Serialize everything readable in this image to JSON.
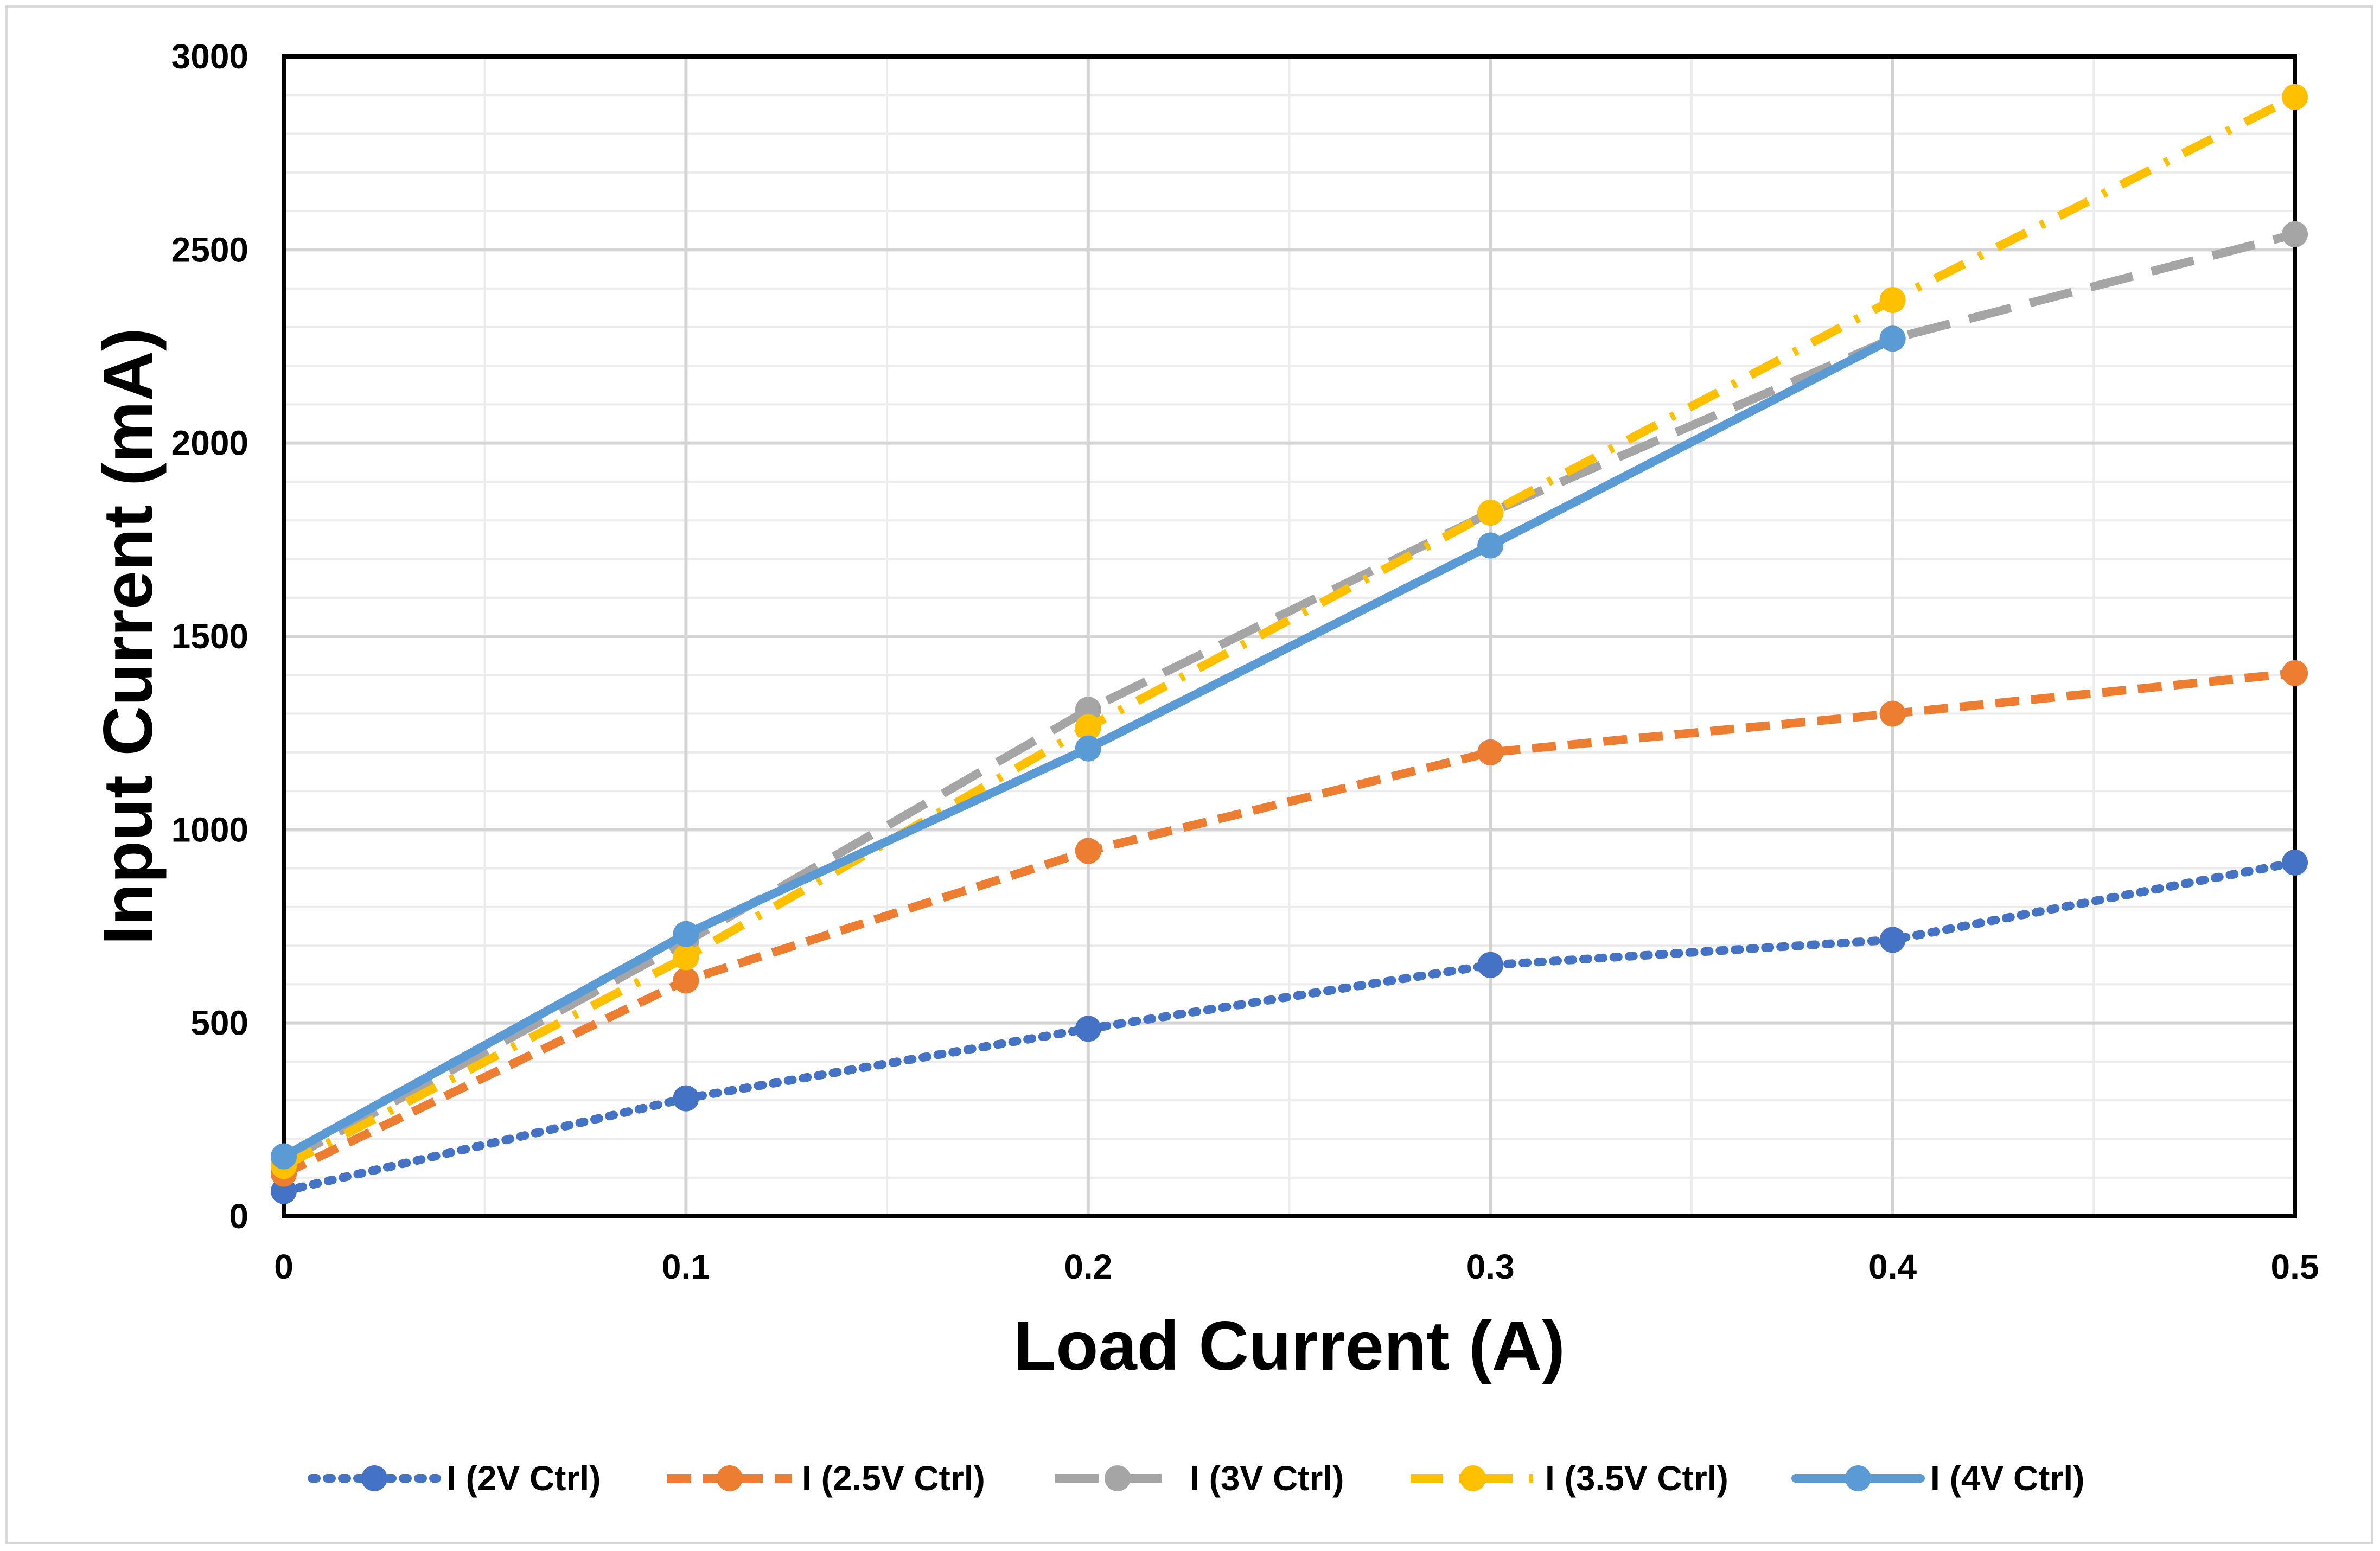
{
  "chart_data": {
    "type": "line",
    "title": "",
    "xlabel": "Load Current (A)",
    "ylabel": "Input Current (mA)",
    "xlim": [
      0,
      0.5
    ],
    "ylim": [
      0,
      3000
    ],
    "xticks": [
      "0",
      "0.1",
      "0.2",
      "0.3",
      "0.4",
      "0.5"
    ],
    "yticks": [
      "0",
      "500",
      "1000",
      "1500",
      "2000",
      "2500",
      "3000"
    ],
    "grid": true,
    "legend_position": "bottom",
    "series": [
      {
        "name": "I (2V Ctrl)",
        "color": "#4472c4",
        "dash": "dot",
        "x": [
          0,
          0.1,
          0.2,
          0.3,
          0.4,
          0.5
        ],
        "y": [
          65,
          305,
          485,
          650,
          715,
          915
        ]
      },
      {
        "name": "I (2.5V Ctrl)",
        "color": "#ed7d31",
        "dash": "dash",
        "x": [
          0,
          0.1,
          0.2,
          0.3,
          0.4,
          0.5
        ],
        "y": [
          110,
          610,
          945,
          1200,
          1300,
          1405
        ]
      },
      {
        "name": "I (3V Ctrl)",
        "color": "#a5a5a5",
        "dash": "longdash",
        "x": [
          0,
          0.1,
          0.2,
          0.3,
          0.4,
          0.5
        ],
        "y": [
          140,
          710,
          1310,
          1820,
          2270,
          2540
        ]
      },
      {
        "name": "I (3.5V Ctrl)",
        "color": "#ffc000",
        "dash": "dashdot",
        "x": [
          0,
          0.1,
          0.2,
          0.3,
          0.4,
          0.5
        ],
        "y": [
          130,
          670,
          1265,
          1820,
          2370,
          2895
        ]
      },
      {
        "name": "I (4V Ctrl)",
        "color": "#5b9bd5",
        "dash": "solid",
        "x": [
          0,
          0.1,
          0.2,
          0.3,
          0.4
        ],
        "y": [
          155,
          730,
          1210,
          1735,
          2270
        ]
      }
    ]
  }
}
